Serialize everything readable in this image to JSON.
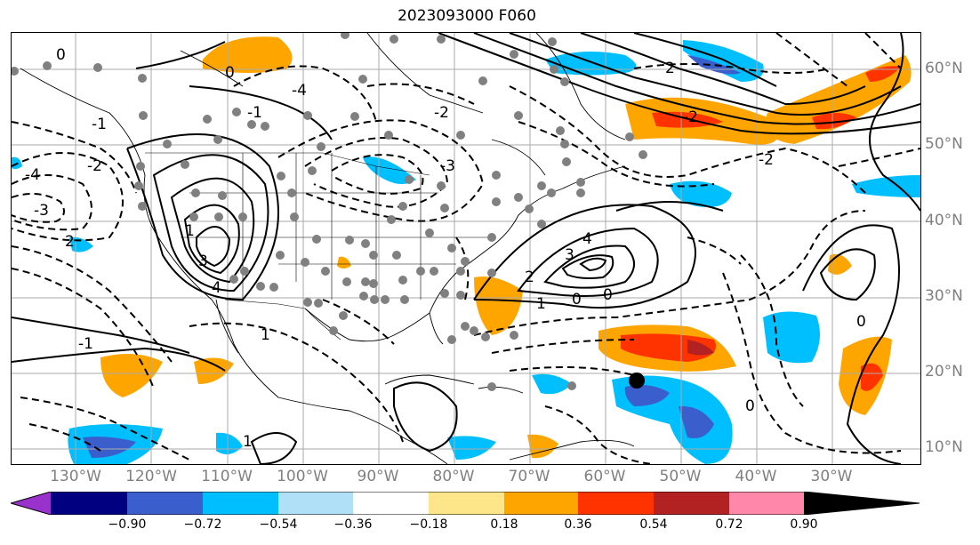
{
  "title": "2023093000 F060",
  "lat_labels": [
    "60°N",
    "50°N",
    "40°N",
    "30°N",
    "20°N",
    "10°N"
  ],
  "lon_labels": [
    "130°W",
    "120°W",
    "110°W",
    "100°W",
    "90°W",
    "80°W",
    "70°W",
    "60°W",
    "50°W",
    "40°W",
    "30°W"
  ],
  "colorbar": {
    "ticks": [
      "−0.90",
      "−0.72",
      "−0.54",
      "−0.36",
      "−0.18",
      "0.18",
      "0.36",
      "0.54",
      "0.72",
      "0.90"
    ],
    "colors": [
      "#9932cc",
      "#000080",
      "#3a5fcd",
      "#00bfff",
      "#b0e0f8",
      "#ffffff",
      "#fde68a",
      "#ffa500",
      "#ff3300",
      "#b22222",
      "#ff88aa"
    ]
  },
  "contour_labels": [
    "0",
    "-1",
    "-2",
    "-3",
    "-4",
    "0",
    "1",
    "2",
    "3",
    "4",
    "-1",
    "-2",
    "-3",
    "-4",
    "0",
    "1",
    "2",
    "3",
    "4",
    "2",
    "-2",
    "0",
    "-1",
    "1",
    "0",
    "-2",
    "1",
    "0"
  ],
  "colors": {
    "station": "#808080",
    "cyclone_marker": "#000000"
  }
}
